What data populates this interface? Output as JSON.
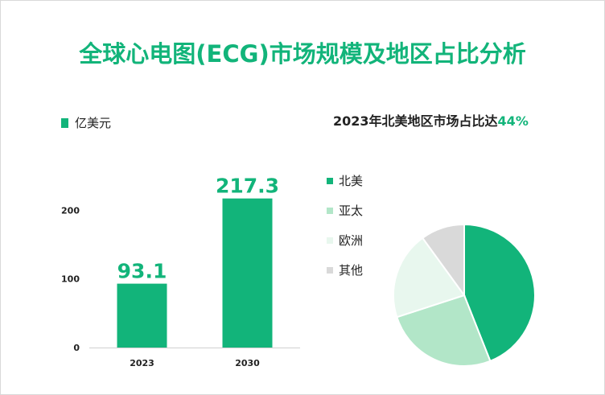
{
  "title": "全球心电图(ECG)市场规模及地区占比分析",
  "colors": {
    "accent": "#12b47a"
  },
  "chart_data": [
    {
      "type": "bar",
      "legend": "亿美元",
      "categories": [
        "2023",
        "2030"
      ],
      "values": [
        93.1,
        217.3
      ],
      "value_labels": [
        "93.1",
        "217.3"
      ],
      "yticks": [
        "0",
        "100",
        "200"
      ],
      "ylim": [
        0,
        250
      ],
      "color": "#12b47a"
    },
    {
      "type": "pie",
      "title_prefix": "2023年北美地区市场占比达",
      "title_highlight": "44%",
      "slices": [
        {
          "name": "北美",
          "value": 44,
          "color": "#12b47a"
        },
        {
          "name": "亚太",
          "value": 26,
          "color": "#b2e6c8"
        },
        {
          "name": "欧洲",
          "value": 20,
          "color": "#e8f7ee"
        },
        {
          "name": "其他",
          "value": 10,
          "color": "#d9d9d9"
        }
      ]
    }
  ]
}
